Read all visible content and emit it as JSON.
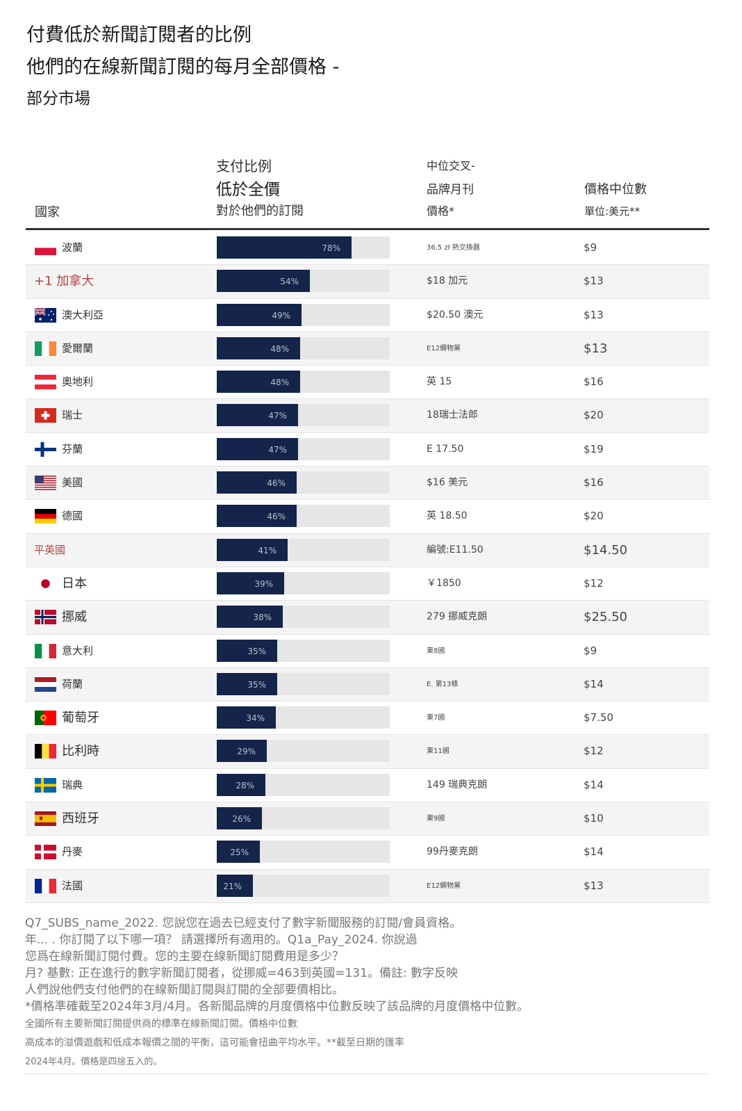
{
  "title": {
    "line1": "付費低於新聞訂閱者的比例",
    "line2": "他們的在線新聞訂閱的每月全部價格 -",
    "line3": "部分市場"
  },
  "headers": {
    "country": "國家",
    "share_l1": "支付比例",
    "share_l2": "低於全價",
    "share_l3": "對於他們的訂閱",
    "price_l1": "中位交叉-",
    "price_l2": "品牌月刊",
    "price_l3": "價格*",
    "median_l1": "價格中位數",
    "median_l2": "單位:美元**"
  },
  "chart_data": {
    "type": "bar",
    "categories": [
      "波蘭",
      "+1 加拿大",
      "澳大利亞",
      "愛爾蘭",
      "奧地利",
      "瑞士",
      "芬蘭",
      "美國",
      "德國",
      "平英國",
      "日本",
      "挪威",
      "意大利",
      "荷蘭",
      "葡萄牙",
      "比利時",
      "瑞典",
      "西班牙",
      "丹麥",
      "法國"
    ],
    "values": [
      78,
      54,
      49,
      48,
      48,
      47,
      47,
      46,
      46,
      41,
      39,
      38,
      35,
      35,
      34,
      29,
      28,
      26,
      25,
      21
    ],
    "value_labels": [
      "78%",
      "54%",
      "49%",
      "48%",
      "48%",
      "47%",
      "47%",
      "46%",
      "46%",
      "41%",
      "39%",
      "38%",
      "35%",
      "35%",
      "34%",
      "29%",
      "28%",
      "26%",
      "25%",
      "21%"
    ],
    "ylim": [
      0,
      100
    ],
    "bar_color": "#14244a",
    "track_color": "#e6e6e6",
    "prices": [
      "36.5 zł 熱交換器",
      "$18 加元",
      "$20.50 澳元",
      "E12綢物黨",
      "英 15",
      "18瑞士法郎",
      "E 17.50",
      "$16 美元",
      "英 18.50",
      "編號:E11.50",
      "￥1850",
      "279 挪威克朗",
      "東8國",
      "E. 第13條",
      "東7國",
      "東11國",
      "149 瑞典克朗",
      "東9國",
      "99丹麥克朗",
      "E12綢物黨"
    ],
    "medians": [
      "$9",
      "$13",
      "$13",
      "$13",
      "$16",
      "$20",
      "$19",
      "$16",
      "$20",
      "$14.50",
      "$12",
      "$25.50",
      "$9",
      "$14",
      "$7.50",
      "$12",
      "$14",
      "$10",
      "$14",
      "$13"
    ],
    "flags": [
      "poland",
      "none",
      "australia",
      "ireland",
      "austria",
      "switzerland",
      "finland",
      "usa",
      "germany",
      "none",
      "japan",
      "norway",
      "italy",
      "netherlands",
      "portugal",
      "belgium",
      "sweden",
      "spain",
      "denmark",
      "france"
    ]
  },
  "notes": [
    "Q7_SUBS_name_2022. 您說您在過去已經支付了數字新聞服務的訂閱/會員資格。",
    "年...      . 你訂閱了以下哪一項？ 請選擇所有適用的。Q1a_Pay_2024. 你說過",
    "您爲在線新聞訂閱付費。您的主要在線新聞訂閱費用是多少？",
    "月? 基數: 正在進行的數字新聞訂閱者，從挪威=463到英國=131。備註: 數字反映",
    "人們說他們支付他們的在線新聞訂閱與訂閱的全部要價相比。",
    "*價格準確截至2024年3月/4月。各新聞品牌的月度價格中位數反映了該品牌的月度價格中位數。",
    "全國所有主要新聞訂閱提供商的標準在線新聞訂閱。價格中位數",
    "高成本的溢價遊戲和低成本報價之間的平衡，這可能會扭曲平均水平。**截至日期的匯率",
    "2024年4月。價格是四捨五入的。"
  ]
}
